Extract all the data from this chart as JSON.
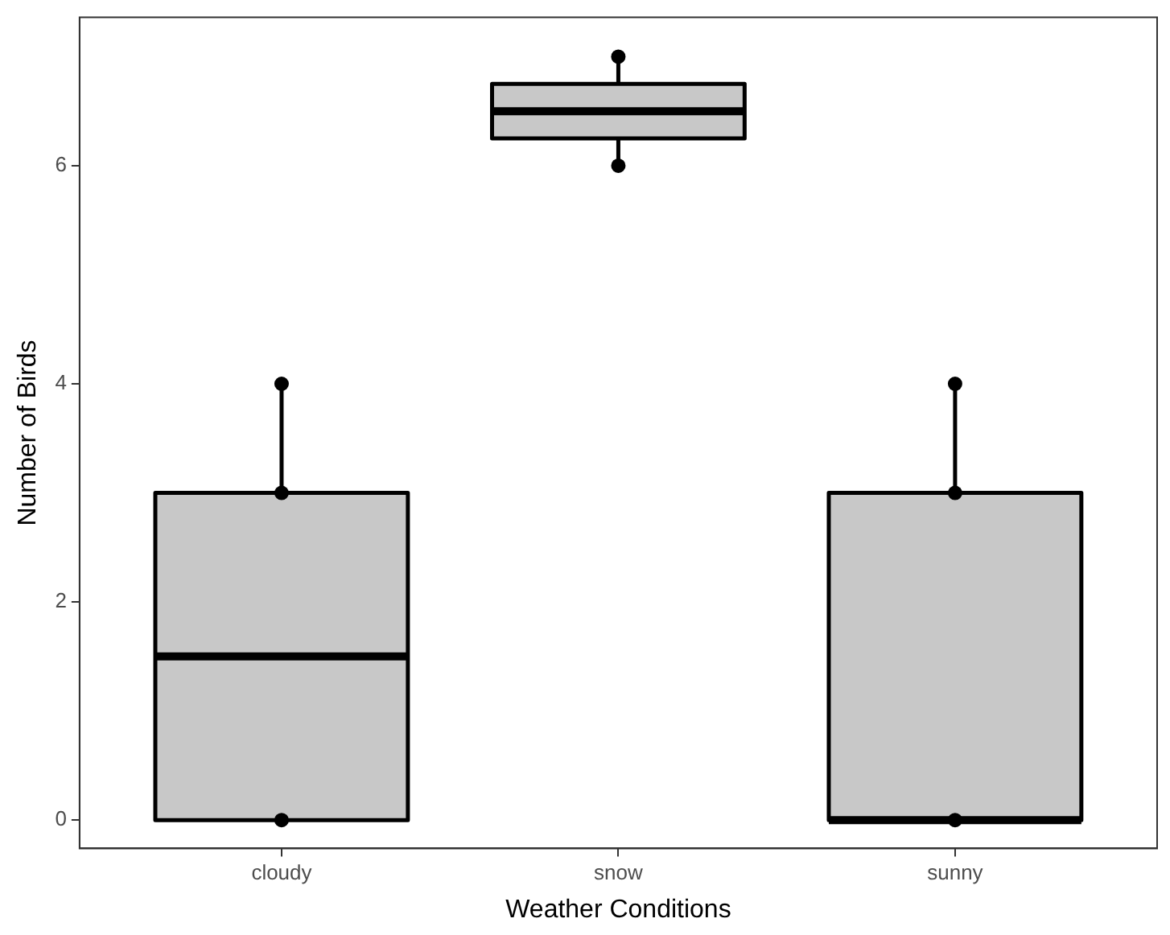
{
  "chart_data": {
    "type": "box",
    "xlabel": "Weather Conditions",
    "ylabel": "Number of Birds",
    "categories": [
      "cloudy",
      "snow",
      "sunny"
    ],
    "boxes": [
      {
        "low": 0,
        "q1": 0,
        "median": 1.5,
        "q3": 3,
        "high": 4
      },
      {
        "low": 6,
        "q1": 6.25,
        "median": 6.5,
        "q3": 6.75,
        "high": 7
      },
      {
        "low": 0,
        "q1": 0,
        "median": 0,
        "q3": 3,
        "high": 4
      }
    ],
    "color": "#c8c8c8",
    "ylim": [
      -0.26,
      7.36
    ],
    "yticks": [
      0,
      2,
      4,
      6
    ],
    "grid": false,
    "legend": false,
    "series": [
      {
        "type": "scatter",
        "color": "#000000",
        "marker": "circle",
        "x": [
          "cloudy",
          "cloudy",
          "cloudy",
          "snow",
          "snow",
          "sunny",
          "sunny",
          "sunny"
        ],
        "values": [
          0,
          3,
          4,
          6,
          7,
          0,
          3,
          4
        ]
      }
    ]
  }
}
